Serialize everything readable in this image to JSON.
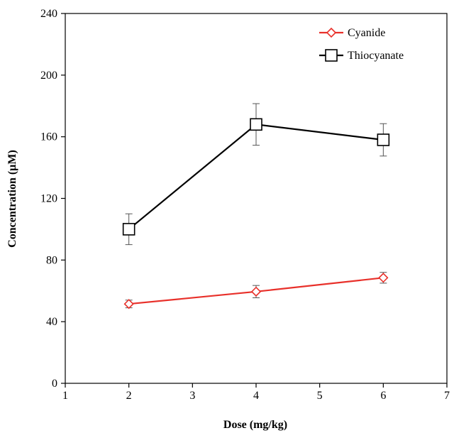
{
  "chart_data": {
    "type": "line",
    "title": "",
    "xlabel": "Dose (mg/kg)",
    "ylabel": "Concentration (µM)",
    "xlim": [
      1,
      7
    ],
    "ylim": [
      0,
      240
    ],
    "x_ticks": [
      1,
      2,
      3,
      4,
      5,
      6,
      7
    ],
    "y_ticks": [
      0,
      40,
      80,
      120,
      160,
      200,
      240
    ],
    "grid": false,
    "legend_position": "top-right",
    "x": [
      2,
      4,
      6
    ],
    "series": [
      {
        "name": "Cyanide",
        "color": "#e8302a",
        "marker": "diamond",
        "values": [
          51.5,
          59.5,
          68.5
        ],
        "errors": [
          2.5,
          4,
          3.5
        ]
      },
      {
        "name": "Thiocyanate",
        "color": "#000000",
        "marker": "square",
        "values": [
          100,
          168,
          158
        ],
        "errors": [
          10,
          13.5,
          10.5
        ]
      }
    ]
  }
}
